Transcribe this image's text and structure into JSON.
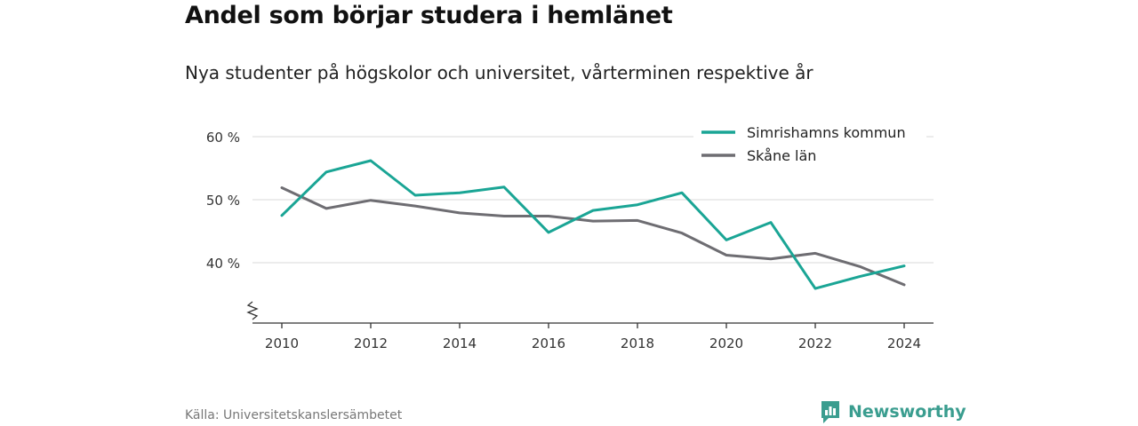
{
  "header": {
    "title": "Andel som börjar studera i hemlänet",
    "subtitle": "Nya studenter på högskolor och universitet, vårterminen respektive år"
  },
  "footer": {
    "source": "Källa: Universitetskanslersämbetet",
    "brand": "Newsworthy",
    "brand_color": "#3a9d8f",
    "brand_icon": "bar-chart-speech-bubble-icon"
  },
  "chart_data": {
    "type": "line",
    "x": [
      2010,
      2011,
      2012,
      2013,
      2014,
      2015,
      2016,
      2017,
      2018,
      2019,
      2020,
      2021,
      2022,
      2023,
      2024
    ],
    "x_ticks": [
      2010,
      2012,
      2014,
      2016,
      2018,
      2020,
      2022,
      2024
    ],
    "y_ticks": [
      {
        "value": 40,
        "label": "40 %"
      },
      {
        "value": 50,
        "label": "50 %"
      },
      {
        "value": 60,
        "label": "60 %"
      }
    ],
    "ylim": [
      30.5,
      62
    ],
    "y_axis_break": true,
    "grid": true,
    "legend_position": "top-right",
    "series": [
      {
        "name": "Simrishamns kommun",
        "color": "#1aa595",
        "values": [
          47.5,
          54.4,
          56.2,
          50.7,
          51.1,
          52.0,
          44.8,
          48.3,
          49.2,
          51.1,
          43.6,
          46.4,
          35.9,
          37.8,
          39.5
        ]
      },
      {
        "name": "Skåne län",
        "color": "#6e6d72",
        "values": [
          51.9,
          48.6,
          49.9,
          49.0,
          47.9,
          47.4,
          47.4,
          46.6,
          46.7,
          44.7,
          41.2,
          40.6,
          41.5,
          39.4,
          36.5
        ]
      }
    ]
  }
}
